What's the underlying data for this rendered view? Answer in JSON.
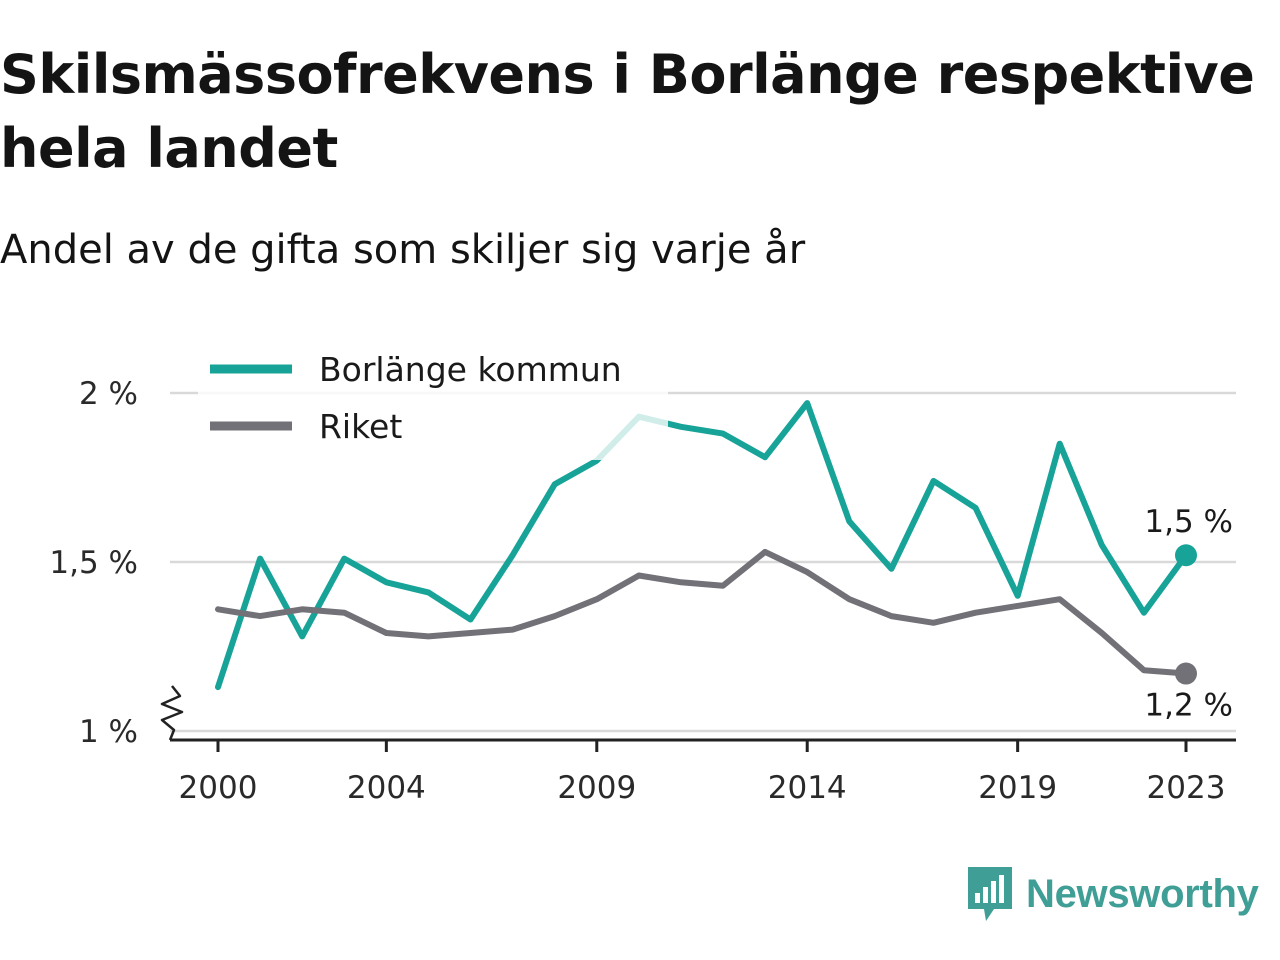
{
  "title": "Skilsmässofrekvens i Borlänge respektive hela landet",
  "subtitle": "Andel av de gifta som skiljer sig varje år",
  "brand": "Newsworthy",
  "colors": {
    "borlange": "#17a398",
    "riket": "#727178",
    "grid": "#d9d9d9",
    "axis": "#222222"
  },
  "chart_data": {
    "type": "line",
    "title": "Skilsmässofrekvens i Borlänge respektive hela landet",
    "subtitle": "Andel av de gifta som skiljer sig varje år",
    "x": [
      2000,
      2001,
      2002,
      2003,
      2004,
      2005,
      2006,
      2007,
      2008,
      2009,
      2010,
      2011,
      2012,
      2013,
      2014,
      2015,
      2016,
      2017,
      2018,
      2019,
      2020,
      2021,
      2022,
      2023
    ],
    "x_ticks": [
      2000,
      2004,
      2009,
      2014,
      2019,
      2023
    ],
    "x_tick_labels": [
      "2000",
      "2004",
      "2009",
      "2014",
      "2019",
      "2023"
    ],
    "y_ticks": [
      1,
      1.5,
      2
    ],
    "y_tick_labels": [
      "1 %",
      "1,5 %",
      "2 %"
    ],
    "ylim": [
      1,
      2
    ],
    "y_axis_break": true,
    "grid": true,
    "legend_position": "top-left",
    "series": [
      {
        "name": "Borlänge kommun",
        "color": "#17a398",
        "values": [
          1.13,
          1.51,
          1.28,
          1.51,
          1.44,
          1.41,
          1.33,
          1.52,
          1.73,
          1.8,
          1.93,
          1.9,
          1.88,
          1.81,
          1.97,
          1.62,
          1.48,
          1.74,
          1.66,
          1.4,
          1.85,
          1.55,
          1.35,
          1.52
        ],
        "end_label": "1,5 %"
      },
      {
        "name": "Riket",
        "color": "#727178",
        "values": [
          1.36,
          1.34,
          1.36,
          1.35,
          1.29,
          1.28,
          1.29,
          1.3,
          1.34,
          1.39,
          1.46,
          1.44,
          1.43,
          1.53,
          1.47,
          1.39,
          1.34,
          1.32,
          1.35,
          1.37,
          1.39,
          1.29,
          1.18,
          1.17
        ],
        "end_label": "1,2 %"
      }
    ]
  }
}
